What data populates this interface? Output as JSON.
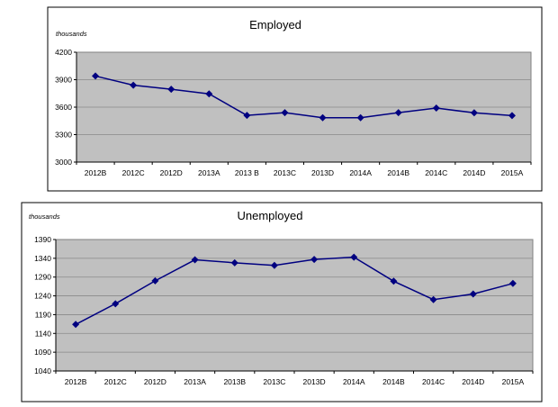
{
  "chart_data": [
    {
      "type": "line",
      "title": "Employed",
      "ylabel": "thousands",
      "xlabel": "",
      "categories": [
        "2012B",
        "2012C",
        "2012D",
        "2013A",
        "2013 B",
        "2013C",
        "2013D",
        "2014A",
        "2014B",
        "2014C",
        "2014D",
        "2015A"
      ],
      "series": [
        {
          "name": "Employed",
          "values": [
            3940,
            3840,
            3795,
            3745,
            3510,
            3540,
            3485,
            3485,
            3540,
            3590,
            3538,
            3508
          ]
        }
      ],
      "ylim": [
        3000,
        4200
      ],
      "yticks": [
        "3000",
        "3300",
        "3600",
        "3900",
        "4200"
      ],
      "grid": true,
      "colors": {
        "line": "#000080",
        "plot_bg": "#c0c0c0"
      }
    },
    {
      "type": "line",
      "title": "Unemployed",
      "ylabel": "thousands",
      "xlabel": "",
      "categories": [
        "2012B",
        "2012C",
        "2012D",
        "2013A",
        "2013B",
        "2013C",
        "2013D",
        "2014A",
        "2014B",
        "2014C",
        "2014D",
        "2015A"
      ],
      "series": [
        {
          "name": "Unemployed",
          "values": [
            1164,
            1219,
            1280,
            1336,
            1328,
            1321,
            1337,
            1343,
            1279,
            1230,
            1245,
            1273
          ]
        }
      ],
      "ylim": [
        1040,
        1390
      ],
      "yticks": [
        "1040",
        "1090",
        "1140",
        "1190",
        "1240",
        "1290",
        "1340",
        "1390"
      ],
      "grid": true,
      "colors": {
        "line": "#000080",
        "plot_bg": "#c0c0c0"
      }
    }
  ]
}
